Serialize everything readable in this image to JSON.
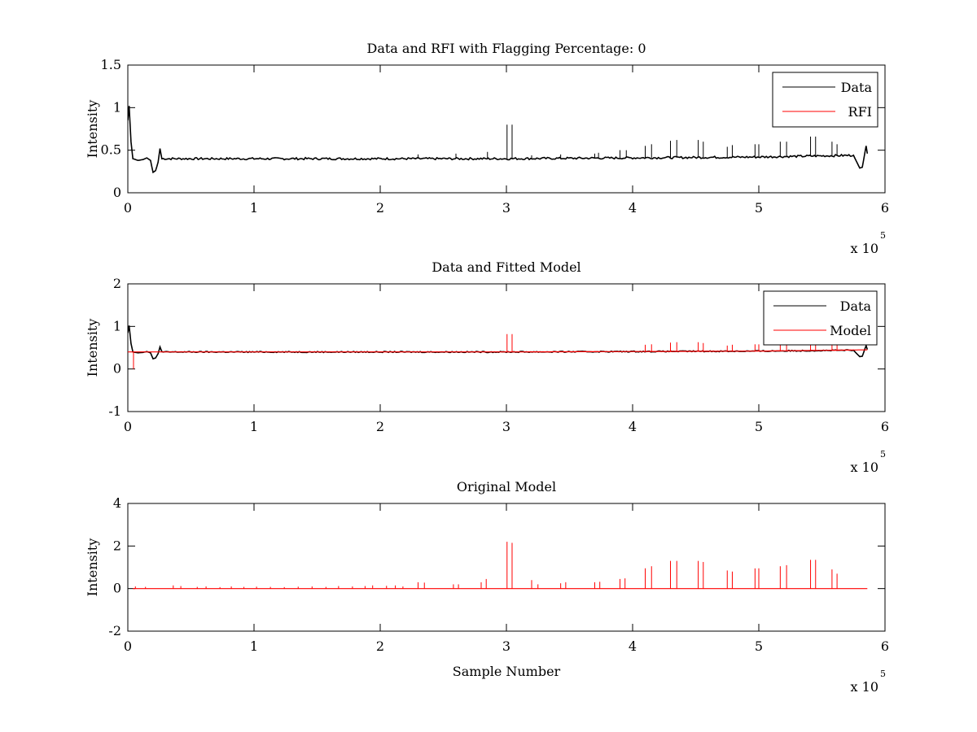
{
  "chart_data": [
    {
      "type": "line",
      "title": "Data and RFI with Flagging Percentage: 0",
      "xlabel": "",
      "ylabel": "Intensity",
      "xlim": [
        0,
        600000
      ],
      "ylim": [
        0,
        1.5
      ],
      "xticks": [
        0,
        1,
        2,
        3,
        4,
        5,
        6
      ],
      "xtick_multiplier": "x 10",
      "xtick_exponent": "5",
      "yticks": [
        "0",
        "0.5",
        "1",
        "1.5"
      ],
      "ytick_values": [
        0,
        0.5,
        1,
        1.5
      ],
      "legend_position": "top-right",
      "legend": [
        {
          "name": "Data",
          "color": "#000000"
        },
        {
          "name": "RFI",
          "color": "#ff0000"
        }
      ],
      "series": [
        {
          "name": "Data",
          "color": "#000000",
          "baseline": [
            [
              0,
              0.85
            ],
            [
              1000,
              1.02
            ],
            [
              2500,
              0.6
            ],
            [
              4000,
              0.4
            ],
            [
              8000,
              0.38
            ],
            [
              12000,
              0.39
            ],
            [
              15000,
              0.41
            ],
            [
              18000,
              0.38
            ],
            [
              20000,
              0.24
            ],
            [
              22000,
              0.26
            ],
            [
              24000,
              0.36
            ],
            [
              25500,
              0.52
            ],
            [
              27000,
              0.4
            ],
            [
              100000,
              0.4
            ],
            [
              300000,
              0.4
            ],
            [
              400000,
              0.41
            ],
            [
              500000,
              0.42
            ],
            [
              575000,
              0.44
            ],
            [
              578000,
              0.35
            ],
            [
              580000,
              0.29
            ],
            [
              582000,
              0.3
            ],
            [
              585000,
              0.55
            ],
            [
              586000,
              0.46
            ]
          ],
          "spikes": [
            [
              300500,
              0.8
            ],
            [
              304500,
              0.8
            ],
            [
              410000,
              0.55
            ],
            [
              415000,
              0.57
            ],
            [
              430000,
              0.61
            ],
            [
              435000,
              0.62
            ],
            [
              452000,
              0.62
            ],
            [
              456000,
              0.6
            ],
            [
              475000,
              0.54
            ],
            [
              479000,
              0.56
            ],
            [
              497000,
              0.57
            ],
            [
              500000,
              0.57
            ],
            [
              517000,
              0.6
            ],
            [
              522000,
              0.6
            ],
            [
              541000,
              0.66
            ],
            [
              545000,
              0.66
            ],
            [
              558000,
              0.6
            ],
            [
              562000,
              0.57
            ],
            [
              230000,
              0.45
            ],
            [
              260000,
              0.46
            ],
            [
              285000,
              0.48
            ],
            [
              320000,
              0.44
            ],
            [
              343000,
              0.45
            ],
            [
              370000,
              0.46
            ],
            [
              373000,
              0.47
            ],
            [
              390000,
              0.5
            ],
            [
              395000,
              0.5
            ]
          ]
        },
        {
          "name": "RFI",
          "color": "#ff0000",
          "baseline": [],
          "spikes": []
        }
      ]
    },
    {
      "type": "line",
      "title": "Data and Fitted Model",
      "xlabel": "",
      "ylabel": "Intensity",
      "xlim": [
        0,
        600000
      ],
      "ylim": [
        -1,
        2
      ],
      "xticks": [
        0,
        1,
        2,
        3,
        4,
        5,
        6
      ],
      "xtick_multiplier": "x 10",
      "xtick_exponent": "5",
      "yticks": [
        "-1",
        "0",
        "1",
        "2"
      ],
      "ytick_values": [
        -1,
        0,
        1,
        2
      ],
      "legend_position": "top-right",
      "legend": [
        {
          "name": "Data",
          "color": "#000000"
        },
        {
          "name": "Model",
          "color": "#ff0000"
        }
      ],
      "series": [
        {
          "name": "Data",
          "color": "#000000",
          "baseline": [
            [
              0,
              0.85
            ],
            [
              1000,
              1.02
            ],
            [
              2500,
              0.6
            ],
            [
              4000,
              0.4
            ],
            [
              8000,
              0.38
            ],
            [
              12000,
              0.39
            ],
            [
              15000,
              0.41
            ],
            [
              18000,
              0.38
            ],
            [
              20000,
              0.24
            ],
            [
              22000,
              0.26
            ],
            [
              24000,
              0.36
            ],
            [
              25500,
              0.52
            ],
            [
              27000,
              0.4
            ],
            [
              100000,
              0.4
            ],
            [
              300000,
              0.4
            ],
            [
              400000,
              0.41
            ],
            [
              500000,
              0.42
            ],
            [
              575000,
              0.44
            ],
            [
              578000,
              0.35
            ],
            [
              580000,
              0.29
            ],
            [
              582000,
              0.3
            ],
            [
              585000,
              0.55
            ],
            [
              586000,
              0.46
            ]
          ],
          "spikes": []
        },
        {
          "name": "Model",
          "color": "#ff0000",
          "baseline": [
            [
              0,
              0.4
            ],
            [
              300000,
              0.4
            ],
            [
              500000,
              0.42
            ],
            [
              586000,
              0.45
            ]
          ],
          "spikes": [
            [
              4500,
              0.0
            ],
            [
              300500,
              0.82
            ],
            [
              304500,
              0.82
            ],
            [
              410000,
              0.57
            ],
            [
              415000,
              0.58
            ],
            [
              430000,
              0.62
            ],
            [
              435000,
              0.63
            ],
            [
              452000,
              0.63
            ],
            [
              456000,
              0.61
            ],
            [
              475000,
              0.55
            ],
            [
              479000,
              0.57
            ],
            [
              497000,
              0.58
            ],
            [
              500000,
              0.58
            ],
            [
              517000,
              0.61
            ],
            [
              522000,
              0.61
            ],
            [
              541000,
              0.66
            ],
            [
              545000,
              0.66
            ],
            [
              558000,
              0.6
            ],
            [
              562000,
              0.58
            ]
          ]
        }
      ]
    },
    {
      "type": "line",
      "title": "Original Model",
      "xlabel": "Sample Number",
      "ylabel": "Intensity",
      "xlim": [
        0,
        600000
      ],
      "ylim": [
        -2,
        4
      ],
      "xticks": [
        0,
        1,
        2,
        3,
        4,
        5,
        6
      ],
      "xtick_multiplier": "x 10",
      "xtick_exponent": "5",
      "yticks": [
        "-2",
        "0",
        "2",
        "4"
      ],
      "ytick_values": [
        -2,
        0,
        2,
        4
      ],
      "legend_position": "none",
      "legend": [],
      "series": [
        {
          "name": "Model",
          "color": "#ff0000",
          "baseline": [
            [
              4000,
              0.0
            ],
            [
              586000,
              0.0
            ]
          ],
          "spikes": [
            [
              300500,
              2.2
            ],
            [
              304500,
              2.15
            ],
            [
              410000,
              0.95
            ],
            [
              415000,
              1.05
            ],
            [
              430000,
              1.3
            ],
            [
              435000,
              1.3
            ],
            [
              452000,
              1.3
            ],
            [
              456000,
              1.25
            ],
            [
              475000,
              0.85
            ],
            [
              479000,
              0.8
            ],
            [
              497000,
              0.95
            ],
            [
              500000,
              0.95
            ],
            [
              517000,
              1.05
            ],
            [
              522000,
              1.1
            ],
            [
              541000,
              1.35
            ],
            [
              545000,
              1.35
            ],
            [
              558000,
              0.9
            ],
            [
              562000,
              0.7
            ],
            [
              230000,
              0.3
            ],
            [
              235000,
              0.28
            ],
            [
              258000,
              0.2
            ],
            [
              262000,
              0.2
            ],
            [
              280000,
              0.3
            ],
            [
              284000,
              0.45
            ],
            [
              320000,
              0.4
            ],
            [
              325000,
              0.2
            ],
            [
              343000,
              0.25
            ],
            [
              347000,
              0.3
            ],
            [
              370000,
              0.3
            ],
            [
              374000,
              0.32
            ],
            [
              390000,
              0.45
            ],
            [
              394000,
              0.48
            ],
            [
              6000,
              0.1
            ],
            [
              14000,
              0.08
            ],
            [
              36000,
              0.15
            ],
            [
              42000,
              0.12
            ],
            [
              55000,
              0.08
            ],
            [
              62000,
              0.1
            ],
            [
              73000,
              0.07
            ],
            [
              82000,
              0.1
            ],
            [
              92000,
              0.08
            ],
            [
              102000,
              0.09
            ],
            [
              113000,
              0.08
            ],
            [
              124000,
              0.07
            ],
            [
              135000,
              0.09
            ],
            [
              146000,
              0.1
            ],
            [
              157000,
              0.08
            ],
            [
              167000,
              0.12
            ],
            [
              178000,
              0.1
            ],
            [
              188000,
              0.12
            ],
            [
              194000,
              0.15
            ],
            [
              205000,
              0.13
            ],
            [
              212000,
              0.15
            ],
            [
              218000,
              0.1
            ]
          ]
        }
      ]
    }
  ]
}
